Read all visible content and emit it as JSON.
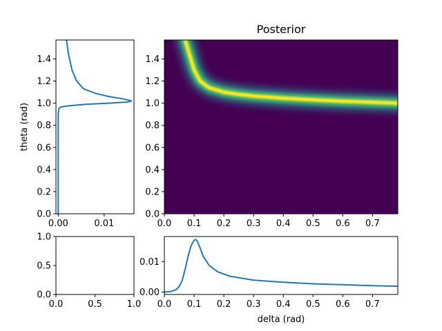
{
  "chart_data": [
    {
      "id": "posterior",
      "type": "heatmap",
      "title": "Posterior",
      "xlabel": "",
      "ylabel": "",
      "xlim": [
        0,
        0.785
      ],
      "ylim": [
        0,
        1.571
      ],
      "xticks": [
        "0.0",
        "0.1",
        "0.2",
        "0.3",
        "0.4",
        "0.5",
        "0.6",
        "0.7"
      ],
      "yticks": [
        "0.0",
        "0.2",
        "0.4",
        "0.6",
        "0.8",
        "1.0",
        "1.2",
        "1.4"
      ],
      "colormap": "viridis",
      "ridge": {
        "delta": [
          0.07,
          0.08,
          0.09,
          0.1,
          0.12,
          0.15,
          0.2,
          0.25,
          0.3,
          0.4,
          0.5,
          0.6,
          0.7,
          0.785
        ],
        "theta": [
          1.571,
          1.48,
          1.39,
          1.3,
          1.2,
          1.14,
          1.1,
          1.08,
          1.065,
          1.045,
          1.03,
          1.018,
          1.008,
          1.0
        ]
      }
    },
    {
      "id": "theta-marginal",
      "type": "line",
      "xlabel": "",
      "ylabel": "theta (rad)",
      "xlim": [
        -0.0005,
        0.0165
      ],
      "ylim": [
        0,
        1.571
      ],
      "xticks": [
        "0.00",
        "0.01"
      ],
      "yticks": [
        "0.0",
        "0.2",
        "0.4",
        "0.6",
        "0.8",
        "1.0",
        "1.2",
        "1.4"
      ],
      "series": [
        {
          "x": [
            0.0,
            0.0,
            0.0,
            0.0001,
            0.0002,
            0.0006,
            0.002,
            0.006,
            0.011,
            0.015,
            0.016,
            0.014,
            0.011,
            0.008,
            0.0055,
            0.004,
            0.003,
            0.0022,
            0.0018
          ],
          "y": [
            0.0,
            0.6,
            0.9,
            0.94,
            0.955,
            0.965,
            0.975,
            0.99,
            1.0,
            1.01,
            1.02,
            1.04,
            1.06,
            1.09,
            1.13,
            1.2,
            1.3,
            1.45,
            1.571
          ]
        }
      ]
    },
    {
      "id": "delta-marginal",
      "type": "line",
      "xlabel": "delta (rad)",
      "ylabel": "",
      "xlim": [
        0,
        0.785
      ],
      "ylim": [
        -0.0008,
        0.0182
      ],
      "xticks": [
        "0.0",
        "0.1",
        "0.2",
        "0.3",
        "0.4",
        "0.5",
        "0.6",
        "0.7"
      ],
      "yticks": [
        "0.00",
        "0.01"
      ],
      "series": [
        {
          "x": [
            0.0,
            0.02,
            0.04,
            0.05,
            0.06,
            0.07,
            0.08,
            0.09,
            0.1,
            0.105,
            0.11,
            0.12,
            0.13,
            0.15,
            0.18,
            0.22,
            0.3,
            0.4,
            0.5,
            0.6,
            0.7,
            0.785
          ],
          "y": [
            0.0,
            0.0001,
            0.0008,
            0.0018,
            0.0038,
            0.0075,
            0.0118,
            0.0153,
            0.017,
            0.0172,
            0.0168,
            0.0145,
            0.0118,
            0.0088,
            0.0066,
            0.0052,
            0.0039,
            0.0032,
            0.0027,
            0.0024,
            0.0021,
            0.0019
          ]
        }
      ]
    },
    {
      "id": "empty-corner",
      "type": "line",
      "xlabel": "",
      "ylabel": "",
      "xlim": [
        0,
        1
      ],
      "ylim": [
        0,
        1
      ],
      "xticks": [
        "0.0",
        "0.5",
        "1.0"
      ],
      "yticks": [
        "0.0",
        "0.5",
        "1.0"
      ],
      "series": []
    }
  ]
}
